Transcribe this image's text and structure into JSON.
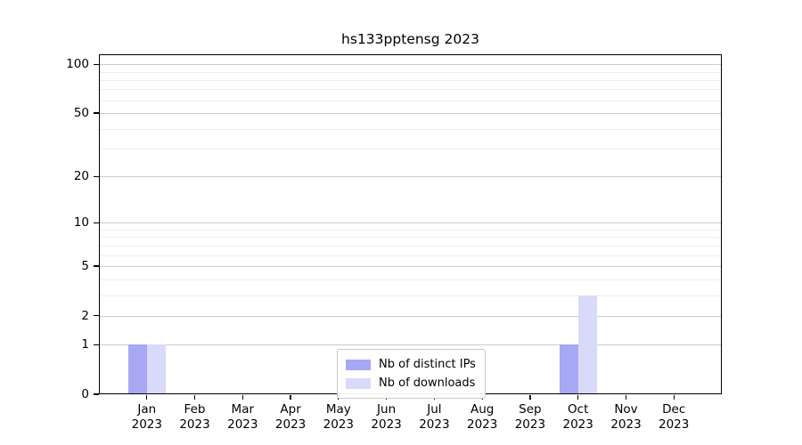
{
  "chart_data": {
    "type": "bar",
    "title": "hs133pptensg 2023",
    "categories": [
      "Jan 2023",
      "Feb 2023",
      "Mar 2023",
      "Apr 2023",
      "May 2023",
      "Jun 2023",
      "Jul 2023",
      "Aug 2023",
      "Sep 2023",
      "Oct 2023",
      "Nov 2023",
      "Dec 2023"
    ],
    "x_tick_labels": [
      {
        "month": "Jan",
        "year": "2023"
      },
      {
        "month": "Feb",
        "year": "2023"
      },
      {
        "month": "Mar",
        "year": "2023"
      },
      {
        "month": "Apr",
        "year": "2023"
      },
      {
        "month": "May",
        "year": "2023"
      },
      {
        "month": "Jun",
        "year": "2023"
      },
      {
        "month": "Jul",
        "year": "2023"
      },
      {
        "month": "Aug",
        "year": "2023"
      },
      {
        "month": "Sep",
        "year": "2023"
      },
      {
        "month": "Oct",
        "year": "2023"
      },
      {
        "month": "Nov",
        "year": "2023"
      },
      {
        "month": "Dec",
        "year": "2023"
      }
    ],
    "series": [
      {
        "name": "Nb of distinct IPs",
        "color": "#a7a7f3",
        "values": [
          1,
          0,
          0,
          0,
          0,
          0,
          0,
          0,
          0,
          1,
          0,
          0
        ]
      },
      {
        "name": "Nb of downloads",
        "color": "#d9d9fa",
        "values": [
          1,
          0,
          0,
          0,
          0,
          0,
          0,
          0,
          0,
          3,
          0,
          0
        ]
      }
    ],
    "y_ticks": [
      0,
      1,
      2,
      5,
      10,
      20,
      50,
      100
    ],
    "y_scale": "log1p",
    "ylim": [
      0,
      115
    ],
    "grid": "horizontal",
    "legend_position": "bottom-center",
    "xlabel": "",
    "ylabel": ""
  },
  "colors": {
    "bar_distinct_ips": "#a7a7f3",
    "bar_downloads": "#d9d9fa",
    "grid_major": "#cccccc",
    "grid_minor": "#ececec",
    "axis": "#000000",
    "legend_border": "#c8c8c8",
    "background": "#ffffff"
  }
}
